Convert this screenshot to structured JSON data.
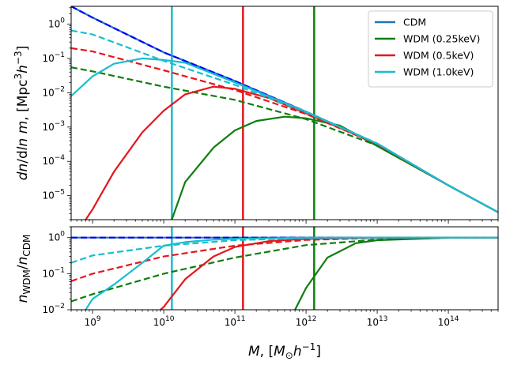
{
  "chart_data": [
    {
      "type": "line",
      "panel": "top",
      "ylabel": "dn/dln m, [Mpc^3 h^-3]",
      "xscale": "log",
      "yscale": "log",
      "xlim": [
        500000000.0,
        500000000000000.0
      ],
      "ylim": [
        2e-06,
        3.3
      ],
      "grid": false,
      "legend_placement": "top-right",
      "x_ticks": [
        {
          "value": 1000000000.0,
          "base": "10",
          "exp": "9"
        },
        {
          "value": 10000000000.0,
          "base": "10",
          "exp": "10"
        },
        {
          "value": 100000000000.0,
          "base": "10",
          "exp": "11"
        },
        {
          "value": 1000000000000.0,
          "base": "10",
          "exp": "12"
        },
        {
          "value": 10000000000000.0,
          "base": "10",
          "exp": "13"
        },
        {
          "value": 100000000000000.0,
          "base": "10",
          "exp": "14"
        }
      ],
      "y_ticks": [
        {
          "value": 1e-05,
          "base": "10",
          "exp": "−5"
        },
        {
          "value": 0.0001,
          "base": "10",
          "exp": "−4"
        },
        {
          "value": 0.001,
          "base": "10",
          "exp": "−3"
        },
        {
          "value": 0.01,
          "base": "10",
          "exp": "−2"
        },
        {
          "value": 0.1,
          "base": "10",
          "exp": "−1"
        },
        {
          "value": 1,
          "base": "10",
          "exp": "0"
        }
      ],
      "vertical_lines": [
        {
          "x": 13000000000.0,
          "color": "#17becf"
        },
        {
          "x": 130000000000.0,
          "color": "#e6161d"
        },
        {
          "x": 1300000000000.0,
          "color": "#0f7d0f"
        }
      ],
      "series": [
        {
          "name": "CDM",
          "color": "#1f77b4",
          "style": "solid",
          "x": [
            500000000.0,
            1000000000.0,
            10000000000.0,
            100000000000.0,
            1000000000000.0,
            10000000000000.0,
            100000000000000.0,
            500000000000000.0
          ],
          "y": [
            3.3,
            1.55,
            0.15,
            0.022,
            0.0028,
            0.00033,
            2e-05,
            3.3e-06
          ]
        },
        {
          "name": "",
          "color": "#0000ff",
          "style": "dashed",
          "x": [
            500000000.0,
            1000000000.0,
            10000000000.0,
            100000000000.0,
            1000000000000.0,
            10000000000000.0,
            100000000000000.0,
            500000000000000.0
          ],
          "y": [
            3.3,
            1.55,
            0.15,
            0.022,
            0.0028,
            0.00033,
            2e-05,
            3.3e-06
          ]
        },
        {
          "name": "WDM (0.25keV)",
          "color": "#0f7d0f",
          "style": "solid",
          "x": [
            13000000000.0,
            20000000000.0,
            50000000000.0,
            100000000000.0,
            200000000000.0,
            500000000000.0,
            1000000000000.0,
            3000000000000.0,
            10000000000000.0,
            100000000000000.0,
            500000000000000.0
          ],
          "y": [
            2e-06,
            2.5e-05,
            0.00025,
            0.0008,
            0.0015,
            0.002,
            0.0018,
            0.0011,
            0.00028,
            2e-05,
            3.3e-06
          ]
        },
        {
          "name": "",
          "color": "#0f7d0f",
          "style": "dashed",
          "x": [
            500000000.0,
            1000000000.0,
            10000000000.0,
            100000000000.0,
            1000000000000.0,
            10000000000000.0,
            100000000000000.0,
            500000000000000.0
          ],
          "y": [
            0.055,
            0.042,
            0.015,
            0.0062,
            0.0017,
            0.00029,
            2e-05,
            3.3e-06
          ]
        },
        {
          "name": "WDM (0.5keV)",
          "color": "#e6161d",
          "style": "solid",
          "x": [
            800000000.0,
            1000000000.0,
            2000000000.0,
            5000000000.0,
            10000000000.0,
            20000000000.0,
            50000000000.0,
            100000000000.0,
            300000000000.0,
            1000000000000.0,
            10000000000000.0,
            100000000000000.0,
            500000000000000.0
          ],
          "y": [
            2e-06,
            4e-06,
            5e-05,
            0.0007,
            0.003,
            0.009,
            0.015,
            0.013,
            0.007,
            0.0025,
            0.00032,
            2e-05,
            3.3e-06
          ]
        },
        {
          "name": "",
          "color": "#e6161d",
          "style": "dashed",
          "x": [
            500000000.0,
            1000000000.0,
            10000000000.0,
            100000000000.0,
            1000000000000.0,
            10000000000000.0,
            100000000000000.0,
            500000000000000.0
          ],
          "y": [
            0.2,
            0.16,
            0.045,
            0.012,
            0.0024,
            0.00032,
            2e-05,
            3.3e-06
          ]
        },
        {
          "name": "WDM (1.0keV)",
          "color": "#17becf",
          "style": "solid",
          "x": [
            500000000.0,
            1000000000.0,
            2000000000.0,
            5000000000.0,
            10000000000.0,
            20000000000.0,
            100000000000.0,
            1000000000000.0,
            10000000000000.0,
            100000000000000.0,
            500000000000000.0
          ],
          "y": [
            0.008,
            0.03,
            0.07,
            0.1,
            0.09,
            0.075,
            0.02,
            0.0028,
            0.00033,
            2e-05,
            3.3e-06
          ]
        },
        {
          "name": "",
          "color": "#17becf",
          "style": "dashed",
          "x": [
            500000000.0,
            1000000000.0,
            10000000000.0,
            100000000000.0,
            1000000000000.0,
            10000000000000.0,
            100000000000000.0,
            500000000000000.0
          ],
          "y": [
            0.65,
            0.5,
            0.085,
            0.017,
            0.0027,
            0.00033,
            2e-05,
            3.3e-06
          ]
        }
      ]
    },
    {
      "type": "line",
      "panel": "bottom",
      "xlabel": "M, [M⊙ h^-1]",
      "ylabel": "n_WDM/n_CDM",
      "xscale": "log",
      "yscale": "log",
      "xlim": [
        500000000.0,
        500000000000000.0
      ],
      "ylim": [
        0.01,
        2
      ],
      "grid": false,
      "y_ticks": [
        {
          "value": 0.01,
          "base": "10",
          "exp": "−2"
        },
        {
          "value": 0.1,
          "base": "10",
          "exp": "−1"
        },
        {
          "value": 1,
          "base": "10",
          "exp": "0"
        }
      ],
      "vertical_lines": [
        {
          "x": 13000000000.0,
          "color": "#17becf"
        },
        {
          "x": 130000000000.0,
          "color": "#e6161d"
        },
        {
          "x": 1300000000000.0,
          "color": "#0f7d0f"
        }
      ],
      "series": [
        {
          "name": "",
          "color": "#1f77b4",
          "style": "solid",
          "x": [
            500000000.0,
            500000000000000.0
          ],
          "y": [
            1,
            1
          ]
        },
        {
          "name": "",
          "color": "#0000ff",
          "style": "dashed",
          "x": [
            500000000.0,
            500000000000000.0
          ],
          "y": [
            1,
            1
          ]
        },
        {
          "name": "",
          "color": "#0f7d0f",
          "style": "solid",
          "x": [
            700000000000.0,
            1000000000000.0,
            2000000000000.0,
            5000000000000.0,
            10000000000000.0,
            100000000000000.0,
            500000000000000.0
          ],
          "y": [
            0.01,
            0.04,
            0.28,
            0.7,
            0.85,
            0.99,
            1
          ]
        },
        {
          "name": "",
          "color": "#0f7d0f",
          "style": "dashed",
          "x": [
            500000000.0,
            1000000000.0,
            10000000000.0,
            100000000000.0,
            1000000000000.0,
            10000000000000.0,
            100000000000000.0,
            500000000000000.0
          ],
          "y": [
            0.017,
            0.027,
            0.1,
            0.28,
            0.62,
            0.88,
            0.99,
            1
          ]
        },
        {
          "name": "",
          "color": "#e6161d",
          "style": "solid",
          "x": [
            9000000000.0,
            10000000000.0,
            20000000000.0,
            50000000000.0,
            100000000000.0,
            300000000000.0,
            1000000000000.0,
            10000000000000.0,
            100000000000000.0,
            500000000000000.0
          ],
          "y": [
            0.01,
            0.012,
            0.07,
            0.3,
            0.55,
            0.8,
            0.92,
            0.99,
            1,
            1
          ]
        },
        {
          "name": "",
          "color": "#e6161d",
          "style": "dashed",
          "x": [
            500000000.0,
            1000000000.0,
            10000000000.0,
            100000000000.0,
            1000000000000.0,
            10000000000000.0,
            100000000000000.0,
            500000000000000.0
          ],
          "y": [
            0.062,
            0.1,
            0.3,
            0.6,
            0.86,
            0.98,
            1,
            1
          ]
        },
        {
          "name": "",
          "color": "#17becf",
          "style": "solid",
          "x": [
            800000000.0,
            1000000000.0,
            2000000000.0,
            5000000000.0,
            10000000000.0,
            20000000000.0,
            50000000000.0,
            100000000000.0,
            1000000000000.0,
            10000000000000.0,
            500000000000000.0
          ],
          "y": [
            0.01,
            0.02,
            0.05,
            0.2,
            0.6,
            0.75,
            0.88,
            0.93,
            0.99,
            1,
            1
          ]
        },
        {
          "name": "",
          "color": "#17becf",
          "style": "dashed",
          "x": [
            500000000.0,
            1000000000.0,
            10000000000.0,
            100000000000.0,
            1000000000000.0,
            10000000000000.0,
            100000000000000.0,
            500000000000000.0
          ],
          "y": [
            0.2,
            0.32,
            0.6,
            0.85,
            0.97,
            1,
            1,
            1
          ]
        }
      ]
    }
  ]
}
